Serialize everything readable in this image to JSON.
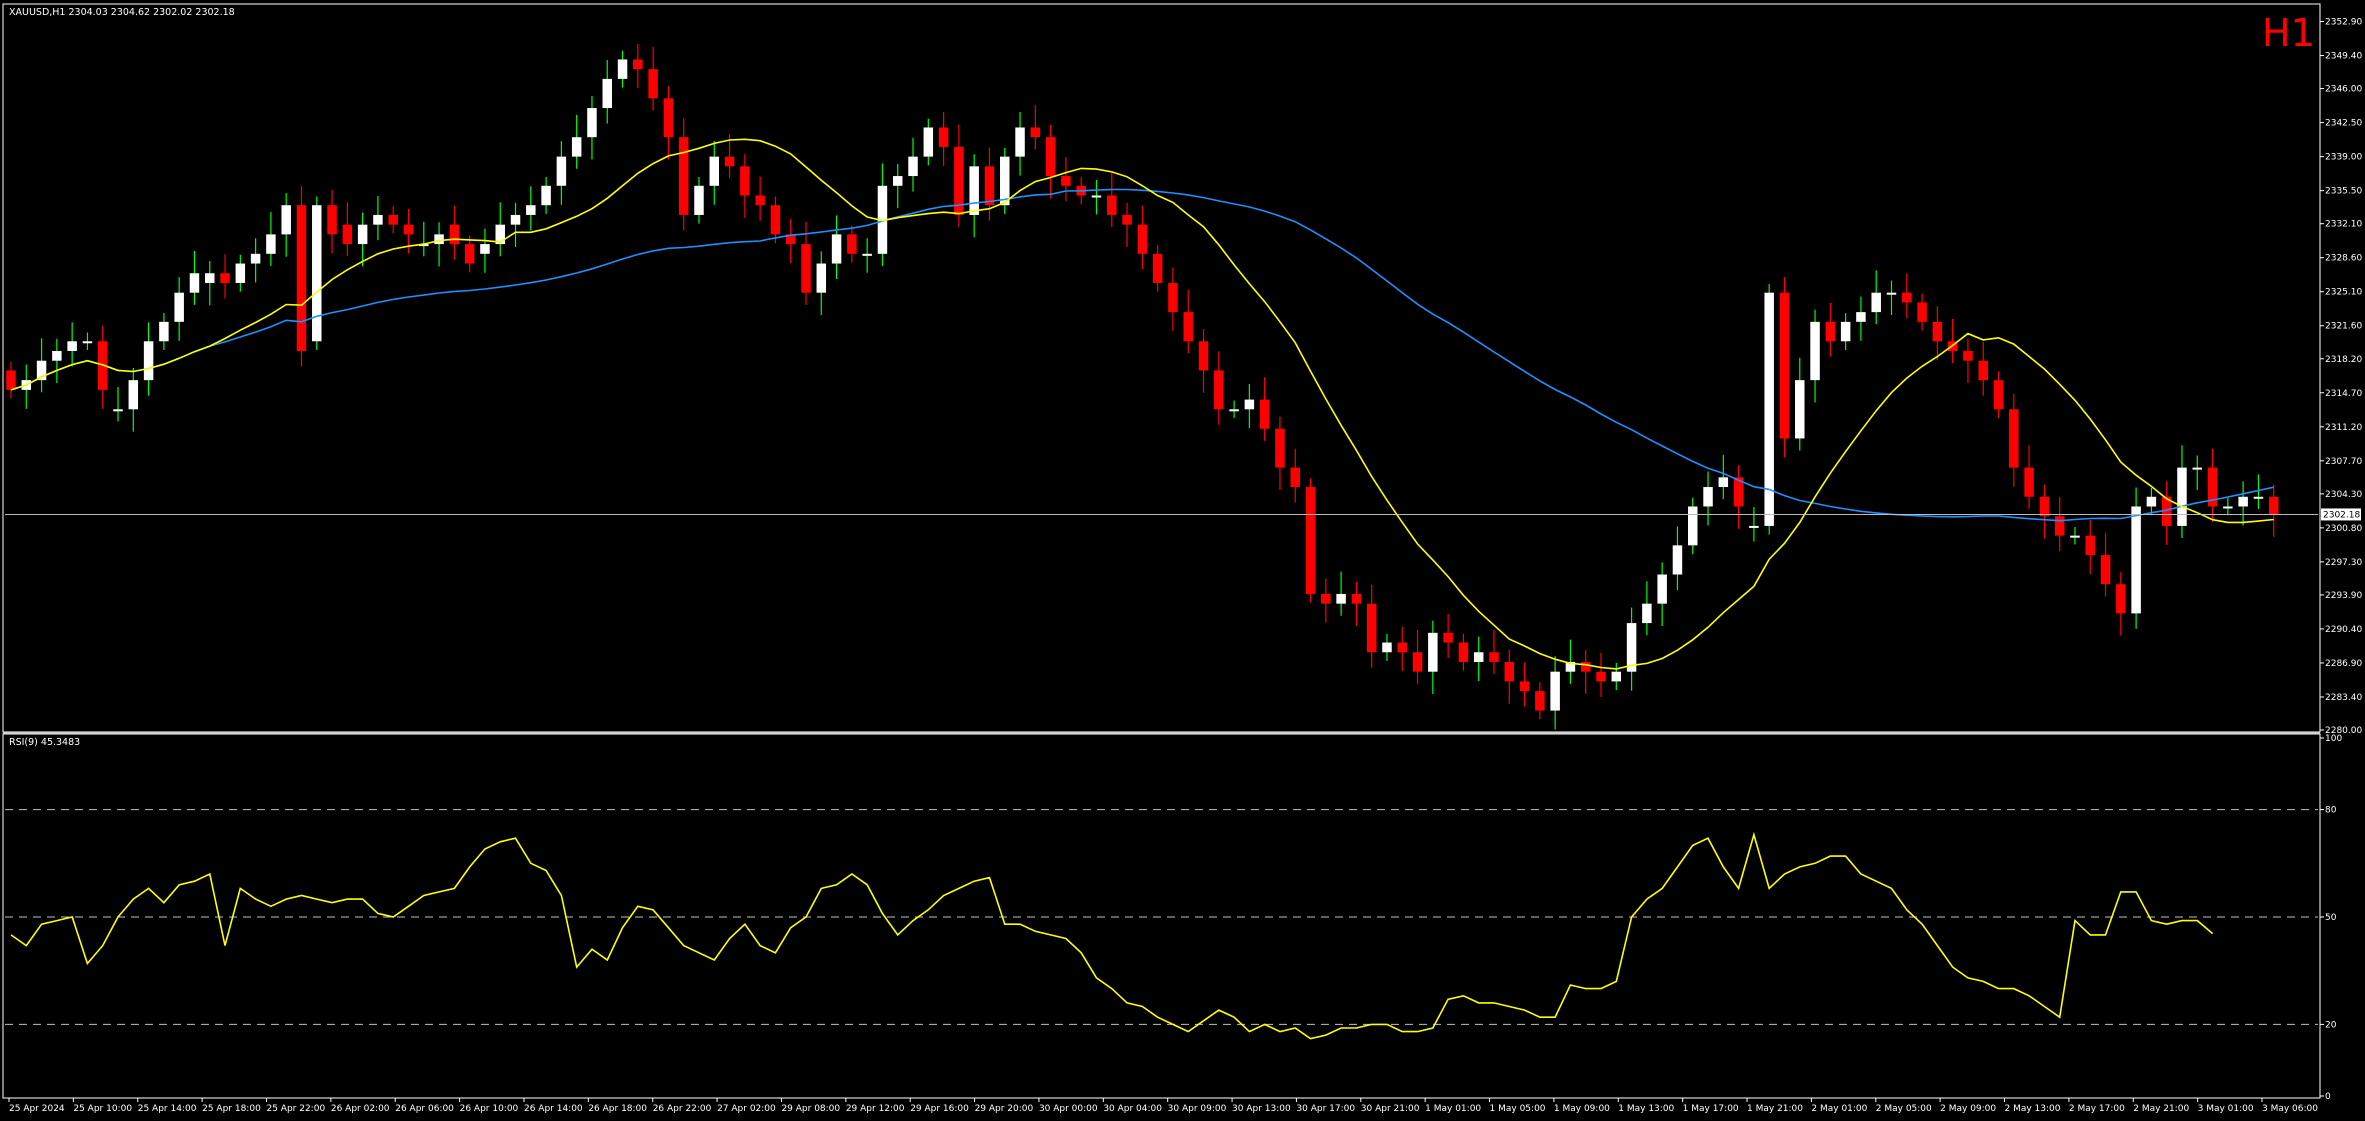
{
  "header": {
    "symbol_line": "XAUUSD,H1  2304.03 2304.62 2302.02 2302.18",
    "timeframe_badge": "H1"
  },
  "rsi_panel": {
    "label": "RSI(9) 45.3483"
  },
  "colors": {
    "background": "#000000",
    "bull_candle": "#ffffff",
    "bear_candle": "#ff0000",
    "wick_bull": "#00ff00",
    "wick_bear": "#ff0000",
    "ma_fast": "#ffff00",
    "ma_slow": "#1e90ff",
    "rsi_line": "#ffff00",
    "grid_dash": "#c0c0c0",
    "axis_text": "#ffffff",
    "badge": "#ff0000"
  },
  "chart_data": [
    {
      "type": "candlestick",
      "title": "XAUUSD,H1",
      "ylim": [
        2280.0,
        2354.5
      ],
      "y_ticks": [
        "2352.90",
        "2349.40",
        "2346.00",
        "2342.50",
        "2339.00",
        "2335.50",
        "2332.10",
        "2328.60",
        "2325.10",
        "2321.60",
        "2318.20",
        "2314.70",
        "2311.20",
        "2307.70",
        "2304.30",
        "2300.80",
        "2297.30",
        "2293.90",
        "2290.40",
        "2286.90",
        "2283.40",
        "2280.00"
      ],
      "current_price": "2302.18",
      "x_ticks": [
        "25 Apr 2024",
        "25 Apr 10:00",
        "25 Apr 14:00",
        "25 Apr 18:00",
        "25 Apr 22:00",
        "26 Apr 02:00",
        "26 Apr 06:00",
        "26 Apr 10:00",
        "26 Apr 14:00",
        "26 Apr 18:00",
        "26 Apr 22:00",
        "27 Apr 02:00",
        "29 Apr 08:00",
        "29 Apr 12:00",
        "29 Apr 16:00",
        "29 Apr 20:00",
        "30 Apr 00:00",
        "30 Apr 04:00",
        "30 Apr 09:00",
        "30 Apr 13:00",
        "30 Apr 17:00",
        "30 Apr 21:00",
        "1 May 01:00",
        "1 May 05:00",
        "1 May 09:00",
        "1 May 13:00",
        "1 May 17:00",
        "1 May 21:00",
        "2 May 01:00",
        "2 May 05:00",
        "2 May 09:00",
        "2 May 13:00",
        "2 May 17:00",
        "2 May 21:00",
        "3 May 01:00",
        "3 May 06:00"
      ],
      "candles_close": [
        2315,
        2316,
        2318,
        2319,
        2320,
        2320,
        2315,
        2313,
        2316,
        2320,
        2322,
        2325,
        2327,
        2327,
        2326,
        2328,
        2329,
        2331,
        2334,
        2319,
        2334,
        2331,
        2330,
        2332,
        2333,
        2332,
        2331,
        2330,
        2331,
        2330,
        2328,
        2330,
        2332,
        2333,
        2334,
        2336,
        2339,
        2341,
        2344,
        2347,
        2349,
        2348,
        2345,
        2341,
        2333,
        2336,
        2339,
        2338,
        2335,
        2334,
        2331,
        2330,
        2325,
        2328,
        2331,
        2329,
        2329,
        2336,
        2337,
        2339,
        2342,
        2340,
        2333,
        2338,
        2334,
        2339,
        2342,
        2341,
        2337,
        2336,
        2335,
        2335,
        2333,
        2332,
        2329,
        2326,
        2323,
        2320,
        2317,
        2313,
        2313,
        2314,
        2311,
        2307,
        2305,
        2294,
        2293,
        2294,
        2293,
        2288,
        2289,
        2288,
        2286,
        2290,
        2289,
        2287,
        2288,
        2287,
        2285,
        2284,
        2282,
        2286,
        2287,
        2286,
        2285,
        2286,
        2291,
        2293,
        2296,
        2299,
        2303,
        2305,
        2306,
        2303,
        2301,
        2325,
        2310,
        2316,
        2322,
        2320,
        2322,
        2323,
        2325,
        2325,
        2324,
        2322,
        2320,
        2319,
        2318,
        2316,
        2313,
        2307,
        2304,
        2302,
        2300,
        2300,
        2298,
        2295,
        2292,
        2303,
        2304,
        2301,
        2307,
        2307,
        2303,
        2303,
        2304,
        2304,
        2302.18
      ],
      "candles_open": [
        2317,
        2315,
        2316,
        2318,
        2319,
        2320,
        2320,
        2313,
        2313,
        2316,
        2320,
        2322,
        2325,
        2326,
        2327,
        2326,
        2328,
        2329,
        2331,
        2334,
        2320,
        2334,
        2332,
        2330,
        2332,
        2333,
        2332,
        2330,
        2330,
        2332,
        2330,
        2329,
        2330,
        2332,
        2333,
        2334,
        2336,
        2339,
        2341,
        2344,
        2347,
        2349,
        2348,
        2345,
        2341,
        2333,
        2336,
        2339,
        2338,
        2335,
        2334,
        2331,
        2330,
        2325,
        2328,
        2331,
        2329,
        2329,
        2336,
        2337,
        2339,
        2342,
        2340,
        2333,
        2338,
        2334,
        2339,
        2342,
        2341,
        2337,
        2336,
        2335,
        2335,
        2333,
        2332,
        2329,
        2326,
        2323,
        2320,
        2317,
        2313,
        2313,
        2314,
        2311,
        2307,
        2305,
        2294,
        2293,
        2294,
        2293,
        2288,
        2289,
        2288,
        2286,
        2290,
        2289,
        2287,
        2288,
        2287,
        2285,
        2284,
        2282,
        2286,
        2287,
        2286,
        2285,
        2286,
        2291,
        2293,
        2296,
        2299,
        2303,
        2305,
        2306,
        2301,
        2301,
        2325,
        2310,
        2316,
        2322,
        2320,
        2322,
        2323,
        2325,
        2325,
        2324,
        2322,
        2320,
        2319,
        2318,
        2316,
        2313,
        2307,
        2304,
        2302,
        2300,
        2300,
        2298,
        2295,
        2292,
        2303,
        2304,
        2301,
        2307,
        2307,
        2303,
        2303,
        2304,
        2304
      ]
    },
    {
      "type": "line",
      "title": "RSI(9) 45.3483",
      "ylim": [
        0,
        100
      ],
      "y_ticks": [
        "100",
        "80",
        "50",
        "20",
        "0"
      ],
      "levels": [
        80,
        50,
        20
      ],
      "values": [
        45,
        42,
        48,
        49,
        50,
        37,
        42,
        50,
        55,
        58,
        54,
        59,
        60,
        62,
        42,
        58,
        55,
        53,
        55,
        56,
        55,
        54,
        55,
        55,
        51,
        50,
        53,
        56,
        57,
        58,
        64,
        69,
        71,
        72,
        65,
        63,
        56,
        36,
        41,
        38,
        47,
        53,
        52,
        47,
        42,
        40,
        38,
        44,
        48,
        42,
        40,
        47,
        50,
        58,
        59,
        62,
        59,
        51,
        45,
        49,
        52,
        56,
        58,
        60,
        61,
        48,
        48,
        46,
        45,
        44,
        40,
        33,
        30,
        26,
        25,
        22,
        20,
        18,
        21,
        24,
        22,
        18,
        20,
        18,
        19,
        16,
        17,
        19,
        19,
        20,
        20,
        18,
        18,
        19,
        27,
        28,
        26,
        26,
        25,
        24,
        22,
        22,
        31,
        30,
        30,
        32,
        50,
        55,
        58,
        64,
        70,
        72,
        64,
        58,
        73,
        58,
        62,
        64,
        65,
        67,
        67,
        62,
        60,
        58,
        52,
        48,
        42,
        36,
        33,
        32,
        30,
        30,
        28,
        25,
        22,
        49,
        45,
        45,
        57,
        57,
        49,
        48,
        49,
        49,
        45.35
      ]
    }
  ]
}
